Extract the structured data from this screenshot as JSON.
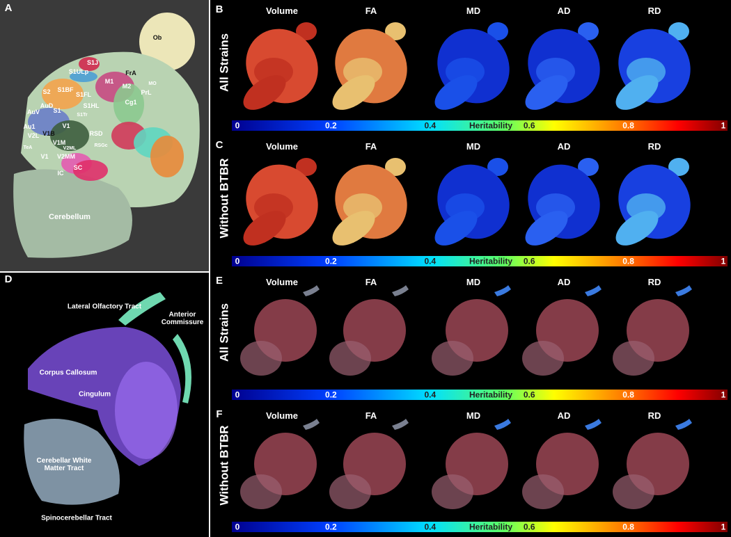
{
  "panel_a": {
    "letter": "A",
    "labels": [
      "Ob",
      "FrA",
      "MO",
      "PrL",
      "S1J",
      "S1ULp",
      "M1",
      "M2",
      "S2",
      "S1BF",
      "S1FL",
      "Cg1",
      "AuD",
      "S1",
      "S1HL",
      "AuV",
      "S1Tr",
      "Au1",
      "V1B",
      "V1",
      "RSD",
      "V2L",
      "V1M",
      "TeA",
      "V1",
      "V2MM",
      "V2ML",
      "RSGc",
      "SC",
      "IC",
      "Cerebellum"
    ]
  },
  "panel_d": {
    "letter": "D",
    "labels": [
      "Lateral Olfactory Tract",
      "Anterior Commissure",
      "Corpus Callosum",
      "Cingulum",
      "Cerebellar White Matter Tract",
      "Spinocerebellar Tract"
    ]
  },
  "rows": [
    {
      "letter": "B",
      "label": "All Strains"
    },
    {
      "letter": "C",
      "label": "Without BTBR"
    },
    {
      "letter": "E",
      "label": "All Strains"
    },
    {
      "letter": "F",
      "label": "Without BTBR"
    }
  ],
  "columns": [
    "Volume",
    "FA",
    "MD",
    "AD",
    "RD"
  ],
  "colorbar": {
    "title": "Heritability",
    "ticks": [
      0,
      0.2,
      0.4,
      0.6,
      0.8,
      1
    ]
  }
}
